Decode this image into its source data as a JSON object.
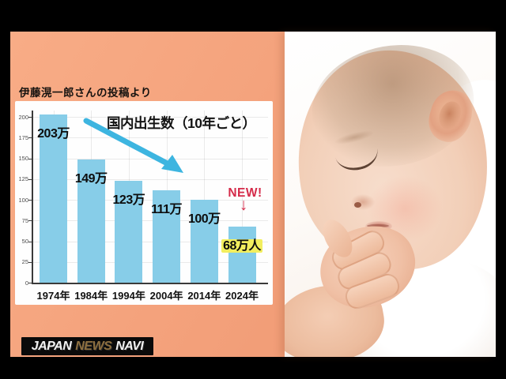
{
  "caption": {
    "text": "伊藤滉一郎さんの投稿より"
  },
  "chart_data": {
    "type": "bar",
    "title": "国内出生数（10年ごと）",
    "categories": [
      "1974年",
      "1984年",
      "1994年",
      "2004年",
      "2014年",
      "2024年"
    ],
    "values": [
      203,
      149,
      123,
      111,
      100,
      68
    ],
    "bar_labels": [
      "203万",
      "149万",
      "123万",
      "111万",
      "100万",
      "68万人"
    ],
    "y_ticks": [
      0,
      25,
      50,
      75,
      100,
      125,
      150,
      175,
      200
    ],
    "ylim": [
      0,
      210
    ],
    "grid": true,
    "legend": false,
    "bar_color": "#87cde8",
    "highlight_index": 5,
    "highlight_color": "#f2ee5e",
    "annotation": {
      "text": "NEW!",
      "color": "#d52b4a",
      "target": "2024年",
      "arrow": "down"
    }
  },
  "logo": {
    "words": [
      {
        "text": "JAPAN",
        "color": "#f2f2f2"
      },
      {
        "text": "NEWS",
        "color": "#8d6f3f"
      },
      {
        "text": "NAVI",
        "color": "#f2f2f2"
      }
    ]
  },
  "photo": {
    "description": "sleeping baby with fist near face"
  },
  "colors": {
    "frame": "#000000",
    "content_bg": "#f3a07a",
    "panel_bg": "#fefefe",
    "trend_arrow": "#3db5e0"
  }
}
